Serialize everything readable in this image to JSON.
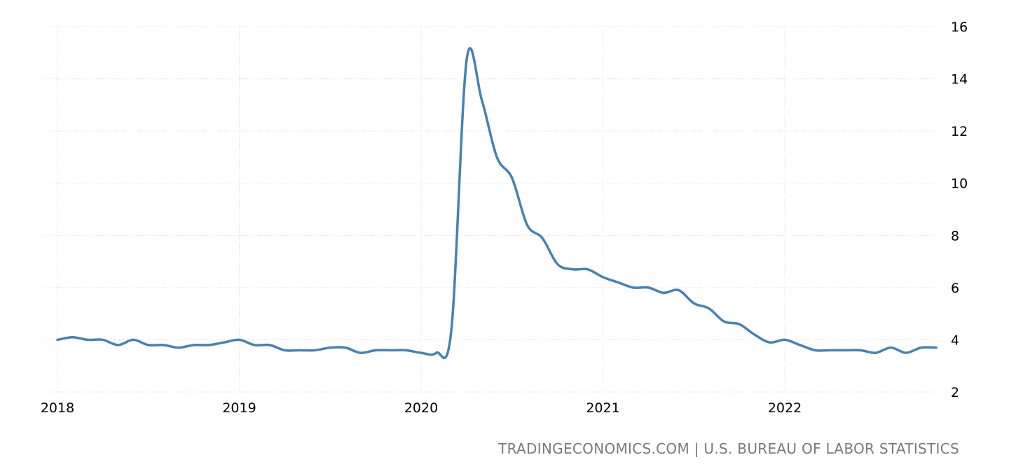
{
  "source": "TRADINGECONOMICS.COM | U.S. BUREAU OF LABOR STATISTICS",
  "colors": {
    "line": "#4682b4",
    "grid": "#d9d9d9",
    "source_text": "#7a7a7a"
  },
  "chart_data": {
    "type": "line",
    "title": "",
    "xlabel": "",
    "ylabel": "",
    "xlim": [
      "2018-01",
      "2022-11"
    ],
    "ylim": [
      2,
      16
    ],
    "y_axis_position": "right",
    "grid": true,
    "x_ticks": [
      "2018",
      "2019",
      "2020",
      "2021",
      "2022"
    ],
    "y_ticks": [
      "2",
      "4",
      "6",
      "8",
      "10",
      "12",
      "14",
      "16"
    ],
    "series": [
      {
        "x": [
          "2018-01",
          "2018-02",
          "2018-03",
          "2018-04",
          "2018-05",
          "2018-06",
          "2018-07",
          "2018-08",
          "2018-09",
          "2018-10",
          "2018-11",
          "2018-12",
          "2019-01",
          "2019-02",
          "2019-03",
          "2019-04",
          "2019-05",
          "2019-06",
          "2019-07",
          "2019-08",
          "2019-09",
          "2019-10",
          "2019-11",
          "2019-12",
          "2020-01",
          "2020-02",
          "2020-03",
          "2020-04",
          "2020-05",
          "2020-06",
          "2020-07",
          "2020-08",
          "2020-09",
          "2020-10",
          "2020-11",
          "2020-12",
          "2021-01",
          "2021-02",
          "2021-03",
          "2021-04",
          "2021-05",
          "2021-06",
          "2021-07",
          "2021-08",
          "2021-09",
          "2021-10",
          "2021-11",
          "2021-12",
          "2022-01",
          "2022-02",
          "2022-03",
          "2022-04",
          "2022-05",
          "2022-06",
          "2022-07",
          "2022-08",
          "2022-09",
          "2022-10",
          "2022-11"
        ],
        "values": [
          4.0,
          4.1,
          4.0,
          4.0,
          3.8,
          4.0,
          3.8,
          3.8,
          3.7,
          3.8,
          3.8,
          3.9,
          4.0,
          3.8,
          3.8,
          3.6,
          3.6,
          3.6,
          3.7,
          3.7,
          3.5,
          3.6,
          3.6,
          3.6,
          3.5,
          3.5,
          4.4,
          14.7,
          13.2,
          11.0,
          10.2,
          8.4,
          7.9,
          6.9,
          6.7,
          6.7,
          6.4,
          6.2,
          6.0,
          6.0,
          5.8,
          5.9,
          5.4,
          5.2,
          4.7,
          4.6,
          4.2,
          3.9,
          4.0,
          3.8,
          3.6,
          3.6,
          3.6,
          3.6,
          3.5,
          3.7,
          3.5,
          3.7,
          3.7
        ]
      }
    ]
  }
}
